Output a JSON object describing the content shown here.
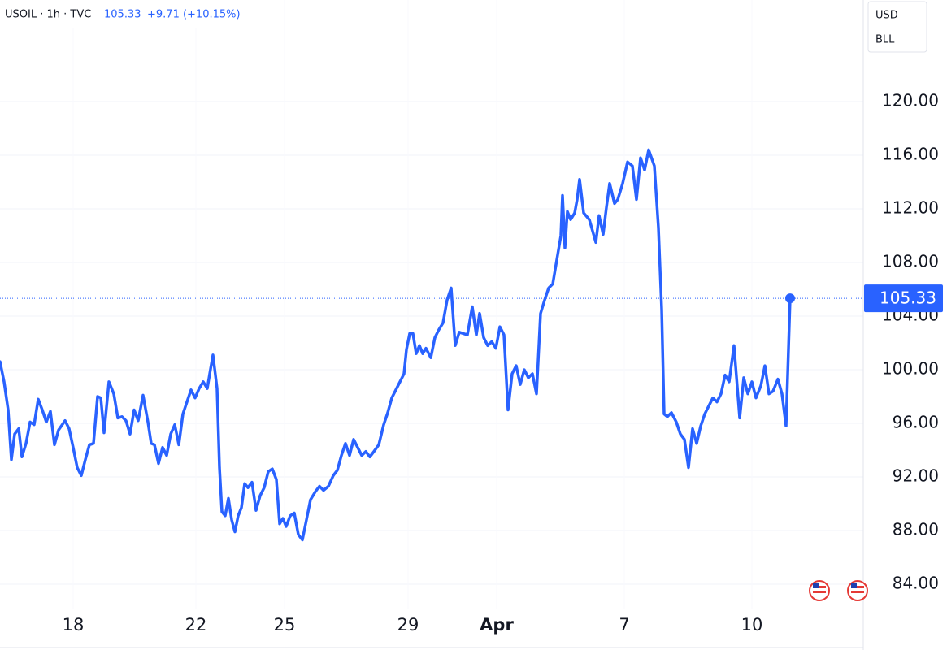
{
  "header": {
    "symbol": "USOIL · 1h · TVC",
    "price": "105.33",
    "change": "+9.71 (+10.15%)"
  },
  "currency": "USD",
  "unit": "BLL",
  "chart_data": {
    "type": "line",
    "color": "#2962ff",
    "grid": true,
    "x": [
      0,
      5,
      10,
      14,
      18,
      23,
      27,
      32,
      37,
      42,
      47,
      52,
      57,
      62,
      67,
      72,
      80,
      85,
      90,
      95,
      100,
      105,
      110,
      115,
      120,
      124,
      128,
      134,
      140,
      145,
      150,
      155,
      160,
      165,
      170,
      176,
      182,
      186,
      190,
      195,
      200,
      205,
      210,
      215,
      220,
      225,
      230,
      235,
      240,
      245,
      250,
      255,
      258,
      262,
      267,
      270,
      273,
      277,
      281,
      285,
      289,
      293,
      297,
      301,
      305,
      310,
      315,
      320,
      325,
      330,
      335,
      340,
      344,
      348,
      352,
      357,
      362,
      367,
      372,
      377,
      382,
      388,
      393,
      398,
      404,
      410,
      415,
      420,
      425,
      430,
      435,
      440,
      445,
      450,
      455,
      460,
      466,
      472,
      477,
      482,
      487,
      492,
      497,
      500,
      504,
      508,
      512,
      516,
      520,
      524,
      530,
      535,
      540,
      545,
      550,
      555,
      560,
      565,
      570,
      575,
      581,
      586,
      590,
      595,
      600,
      605,
      610,
      615,
      620,
      625,
      630,
      635,
      640,
      645,
      650,
      655,
      660,
      665,
      670,
      675,
      680,
      685,
      690,
      692,
      695,
      698,
      702,
      707,
      710,
      713,
      718,
      725,
      733,
      737,
      742,
      746,
      750,
      756,
      760,
      766,
      772,
      778,
      783,
      788,
      793,
      798,
      805,
      810,
      814,
      817,
      821,
      826,
      832,
      837,
      842,
      847,
      852,
      857,
      862,
      867,
      872,
      877,
      882,
      887,
      892,
      897,
      903,
      910,
      915,
      920,
      925,
      930,
      936,
      941,
      946,
      951,
      957,
      962,
      967,
      972
    ],
    "values": [
      100.6,
      99.1,
      97.0,
      93.3,
      95.2,
      95.6,
      93.5,
      94.5,
      96.1,
      95.9,
      97.8,
      97.0,
      96.1,
      96.9,
      94.4,
      95.5,
      96.2,
      95.6,
      94.2,
      92.7,
      92.1,
      93.3,
      94.4,
      94.5,
      98.0,
      97.9,
      95.3,
      99.1,
      98.2,
      96.4,
      96.5,
      96.2,
      95.2,
      97.0,
      96.2,
      98.1,
      96.1,
      94.5,
      94.4,
      93.0,
      94.2,
      93.6,
      95.2,
      95.9,
      94.4,
      96.7,
      97.6,
      98.5,
      97.9,
      98.6,
      99.1,
      98.6,
      99.7,
      101.1,
      98.6,
      92.7,
      89.4,
      89.1,
      90.4,
      88.8,
      87.9,
      89.1,
      89.7,
      91.5,
      91.2,
      91.6,
      89.5,
      90.6,
      91.2,
      92.4,
      92.6,
      91.8,
      88.5,
      88.9,
      88.3,
      89.1,
      89.3,
      87.7,
      87.3,
      88.8,
      90.3,
      90.9,
      91.3,
      91.0,
      91.3,
      92.1,
      92.5,
      93.6,
      94.5,
      93.6,
      94.8,
      94.2,
      93.6,
      93.9,
      93.5,
      93.9,
      94.4,
      95.9,
      96.8,
      97.9,
      98.5,
      99.1,
      99.7,
      101.5,
      102.7,
      102.7,
      101.2,
      101.8,
      101.2,
      101.6,
      100.9,
      102.4,
      103.0,
      103.5,
      105.2,
      106.1,
      101.8,
      102.8,
      102.7,
      102.6,
      104.7,
      102.6,
      104.2,
      102.4,
      101.8,
      102.1,
      101.6,
      103.2,
      102.6,
      97.0,
      99.7,
      100.3,
      98.9,
      100.0,
      99.4,
      99.7,
      98.2,
      104.2,
      105.2,
      106.1,
      106.4,
      108.2,
      110.0,
      113.0,
      109.1,
      111.8,
      111.2,
      111.7,
      112.7,
      114.2,
      111.7,
      111.2,
      109.5,
      111.5,
      110.1,
      112.1,
      113.9,
      112.4,
      112.7,
      113.9,
      115.5,
      115.2,
      112.7,
      115.8,
      114.9,
      116.4,
      115.2,
      110.6,
      104.5,
      96.7,
      96.5,
      96.8,
      96.1,
      95.2,
      94.8,
      92.7,
      95.6,
      94.5,
      95.8,
      96.7,
      97.3,
      97.9,
      97.6,
      98.2,
      99.6,
      99.1,
      101.8,
      96.4,
      99.4,
      98.2,
      99.1,
      97.9,
      98.8,
      100.3,
      98.2,
      98.4,
      99.3,
      98.2,
      95.8,
      105.33
    ],
    "xlim": [
      0,
      1062
    ],
    "ylim": [
      82.12,
      127.58
    ],
    "xticks": [
      {
        "value": 90,
        "label": "18"
      },
      {
        "value": 241,
        "label": "22"
      },
      {
        "value": 350,
        "label": "25"
      },
      {
        "value": 502,
        "label": "29"
      },
      {
        "value": 611,
        "label": "Apr"
      },
      {
        "value": 768,
        "label": "7"
      },
      {
        "value": 925,
        "label": "10"
      }
    ],
    "yticks": [
      {
        "value": 84,
        "label": "84.00"
      },
      {
        "value": 88,
        "label": "88.00"
      },
      {
        "value": 92,
        "label": "92.00"
      },
      {
        "value": 96,
        "label": "96.00"
      },
      {
        "value": 100,
        "label": "100.00"
      },
      {
        "value": 104,
        "label": "104.00"
      },
      {
        "value": 108,
        "label": "108.00"
      },
      {
        "value": 112,
        "label": "112.00"
      },
      {
        "value": 116,
        "label": "116.00"
      },
      {
        "value": 120,
        "label": "120.00"
      }
    ]
  }
}
